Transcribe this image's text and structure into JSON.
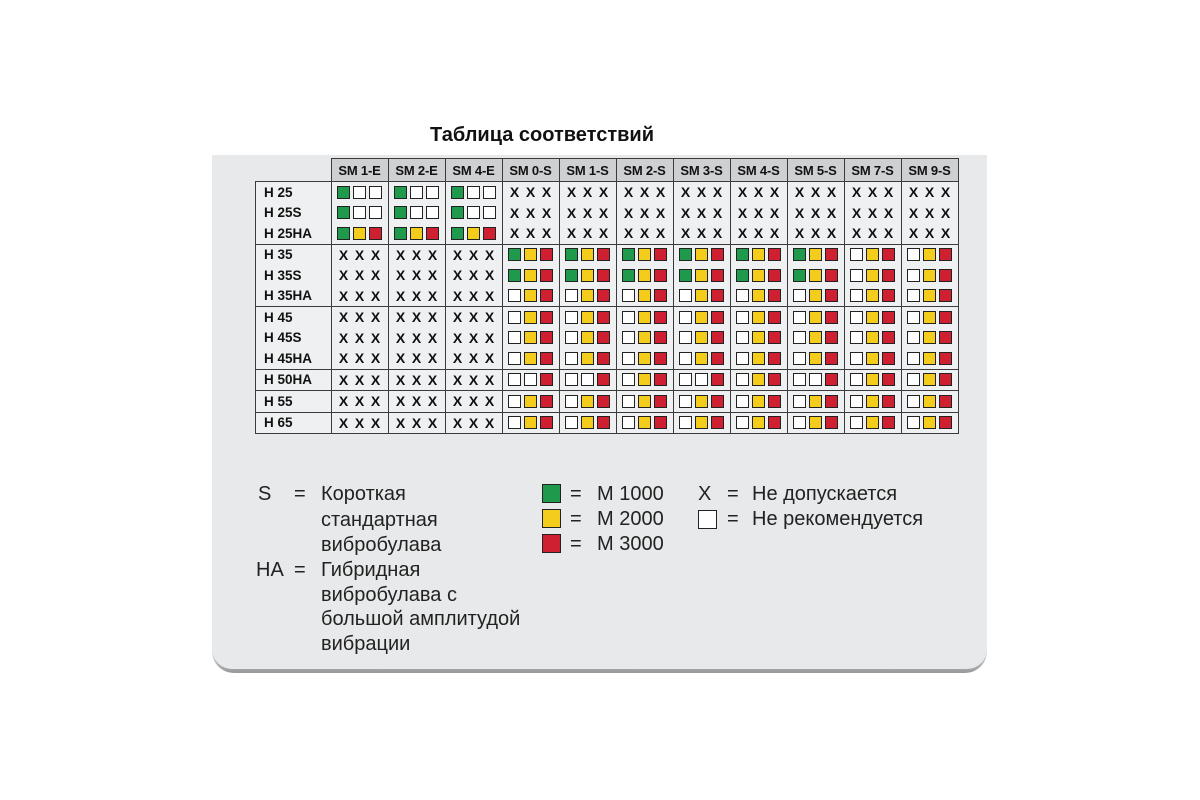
{
  "title": "Таблица соответствий",
  "columns": [
    "SM 1-E",
    "SM 2-E",
    "SM 4-E",
    "SM 0-S",
    "SM 1-S",
    "SM 2-S",
    "SM 3-S",
    "SM 4-S",
    "SM 5-S",
    "SM 7-S",
    "SM 9-S"
  ],
  "groups": [
    {
      "labels": [
        "H 25",
        "H 25S",
        "H 25HA"
      ],
      "rows": [
        [
          "gww",
          "gww",
          "gww",
          "xxx",
          "xxx",
          "xxx",
          "xxx",
          "xxx",
          "xxx",
          "xxx",
          "xxx"
        ],
        [
          "gww",
          "gww",
          "gww",
          "xxx",
          "xxx",
          "xxx",
          "xxx",
          "xxx",
          "xxx",
          "xxx",
          "xxx"
        ],
        [
          "gyr",
          "gyr",
          "gyr",
          "xxx",
          "xxx",
          "xxx",
          "xxx",
          "xxx",
          "xxx",
          "xxx",
          "xxx"
        ]
      ]
    },
    {
      "labels": [
        "H 35",
        "H 35S",
        "H 35HA"
      ],
      "rows": [
        [
          "xxx",
          "xxx",
          "xxx",
          "gyr",
          "gyr",
          "gyr",
          "gyr",
          "gyr",
          "gyr",
          "wyr",
          "wyr"
        ],
        [
          "xxx",
          "xxx",
          "xxx",
          "gyr",
          "gyr",
          "gyr",
          "gyr",
          "gyr",
          "gyr",
          "wyr",
          "wyr"
        ],
        [
          "xxx",
          "xxx",
          "xxx",
          "wyr",
          "wyr",
          "wyr",
          "wyr",
          "wyr",
          "wyr",
          "wyr",
          "wyr"
        ]
      ]
    },
    {
      "labels": [
        "H 45",
        "H 45S",
        "H 45HA"
      ],
      "rows": [
        [
          "xxx",
          "xxx",
          "xxx",
          "wyr",
          "wyr",
          "wyr",
          "wyr",
          "wyr",
          "wyr",
          "wyr",
          "wyr"
        ],
        [
          "xxx",
          "xxx",
          "xxx",
          "wyr",
          "wyr",
          "wyr",
          "wyr",
          "wyr",
          "wyr",
          "wyr",
          "wyr"
        ],
        [
          "xxx",
          "xxx",
          "xxx",
          "wyr",
          "wyr",
          "wyr",
          "wyr",
          "wyr",
          "wyr",
          "wyr",
          "wyr"
        ]
      ]
    },
    {
      "labels": [
        "H 50HA"
      ],
      "rows": [
        [
          "xxx",
          "xxx",
          "xxx",
          "wwr",
          "wwr",
          "wyr",
          "wwr",
          "wyr",
          "wwr",
          "wyr",
          "wyr"
        ]
      ]
    },
    {
      "labels": [
        "H 55"
      ],
      "rows": [
        [
          "xxx",
          "xxx",
          "xxx",
          "wyr",
          "wyr",
          "wyr",
          "wyr",
          "wyr",
          "wyr",
          "wyr",
          "wyr"
        ]
      ]
    },
    {
      "labels": [
        "H 65"
      ],
      "rows": [
        [
          "xxx",
          "xxx",
          "xxx",
          "wyr",
          "wyr",
          "wyr",
          "wyr",
          "wyr",
          "wyr",
          "wyr",
          "wyr"
        ]
      ]
    }
  ],
  "cell_mark_x": "X",
  "legend": {
    "s_key": "S",
    "s_eq": "=",
    "s_lines": [
      "Короткая",
      "стандартная",
      "вибробулава"
    ],
    "ha_key": "HA",
    "ha_eq": "=",
    "ha_lines": [
      "Гибридная",
      "вибробулава с",
      "большой амплитудой",
      "вибрации"
    ],
    "m1000": "М 1000",
    "m2000": "М 2000",
    "m3000": "М 3000",
    "eq": "=",
    "x_symbol": "X",
    "x_text": "Не допускается",
    "w_text": "Не рекомендуется",
    "colors": {
      "green": "#1f9a4c",
      "yellow": "#f4cc1c",
      "red": "#cf2032",
      "white": "#ffffff"
    }
  }
}
